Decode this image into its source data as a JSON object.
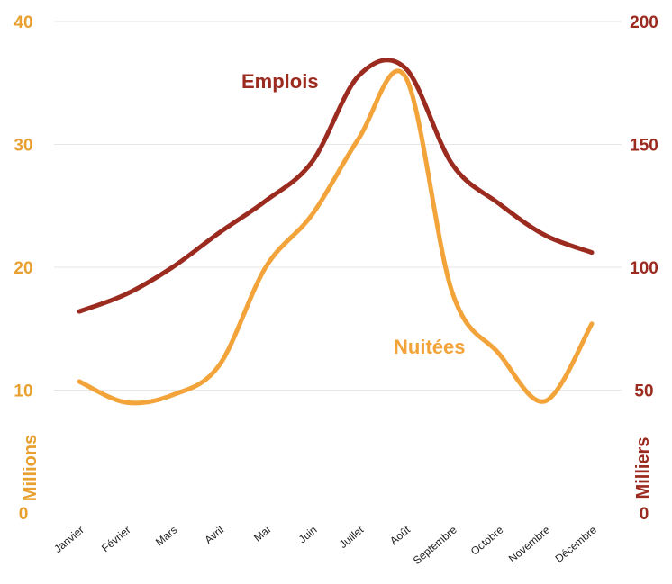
{
  "chart_data": {
    "type": "line",
    "categories": [
      "Janvier",
      "Février",
      "Mars",
      "Avril",
      "Mai",
      "Juin",
      "Juillet",
      "Août",
      "Septembre",
      "Octobre",
      "Novembre",
      "Décembre"
    ],
    "left_axis": {
      "label": "Millions",
      "range": [
        0,
        40
      ],
      "ticks": [
        "0",
        "10",
        "20",
        "30",
        "40"
      ],
      "color": "#e8a030"
    },
    "right_axis": {
      "label": "Milliers",
      "range": [
        0,
        200
      ],
      "ticks": [
        "0",
        "50",
        "100",
        "150",
        "200"
      ],
      "color": "#9b2a1f"
    },
    "series": [
      {
        "name": "Emplois",
        "axis": "right",
        "color": "#9b2a1f",
        "values": [
          82,
          89,
          100,
          114,
          127,
          143,
          178,
          181,
          142,
          126,
          113,
          106
        ]
      },
      {
        "name": "Nuitées",
        "axis": "left",
        "color": "#f2a43a",
        "values": [
          10.7,
          9.0,
          9.6,
          12.0,
          20.0,
          24.3,
          30.5,
          35.5,
          18.0,
          13.0,
          9.1,
          15.4
        ]
      }
    ],
    "grid": true,
    "legend": "inline labels"
  }
}
